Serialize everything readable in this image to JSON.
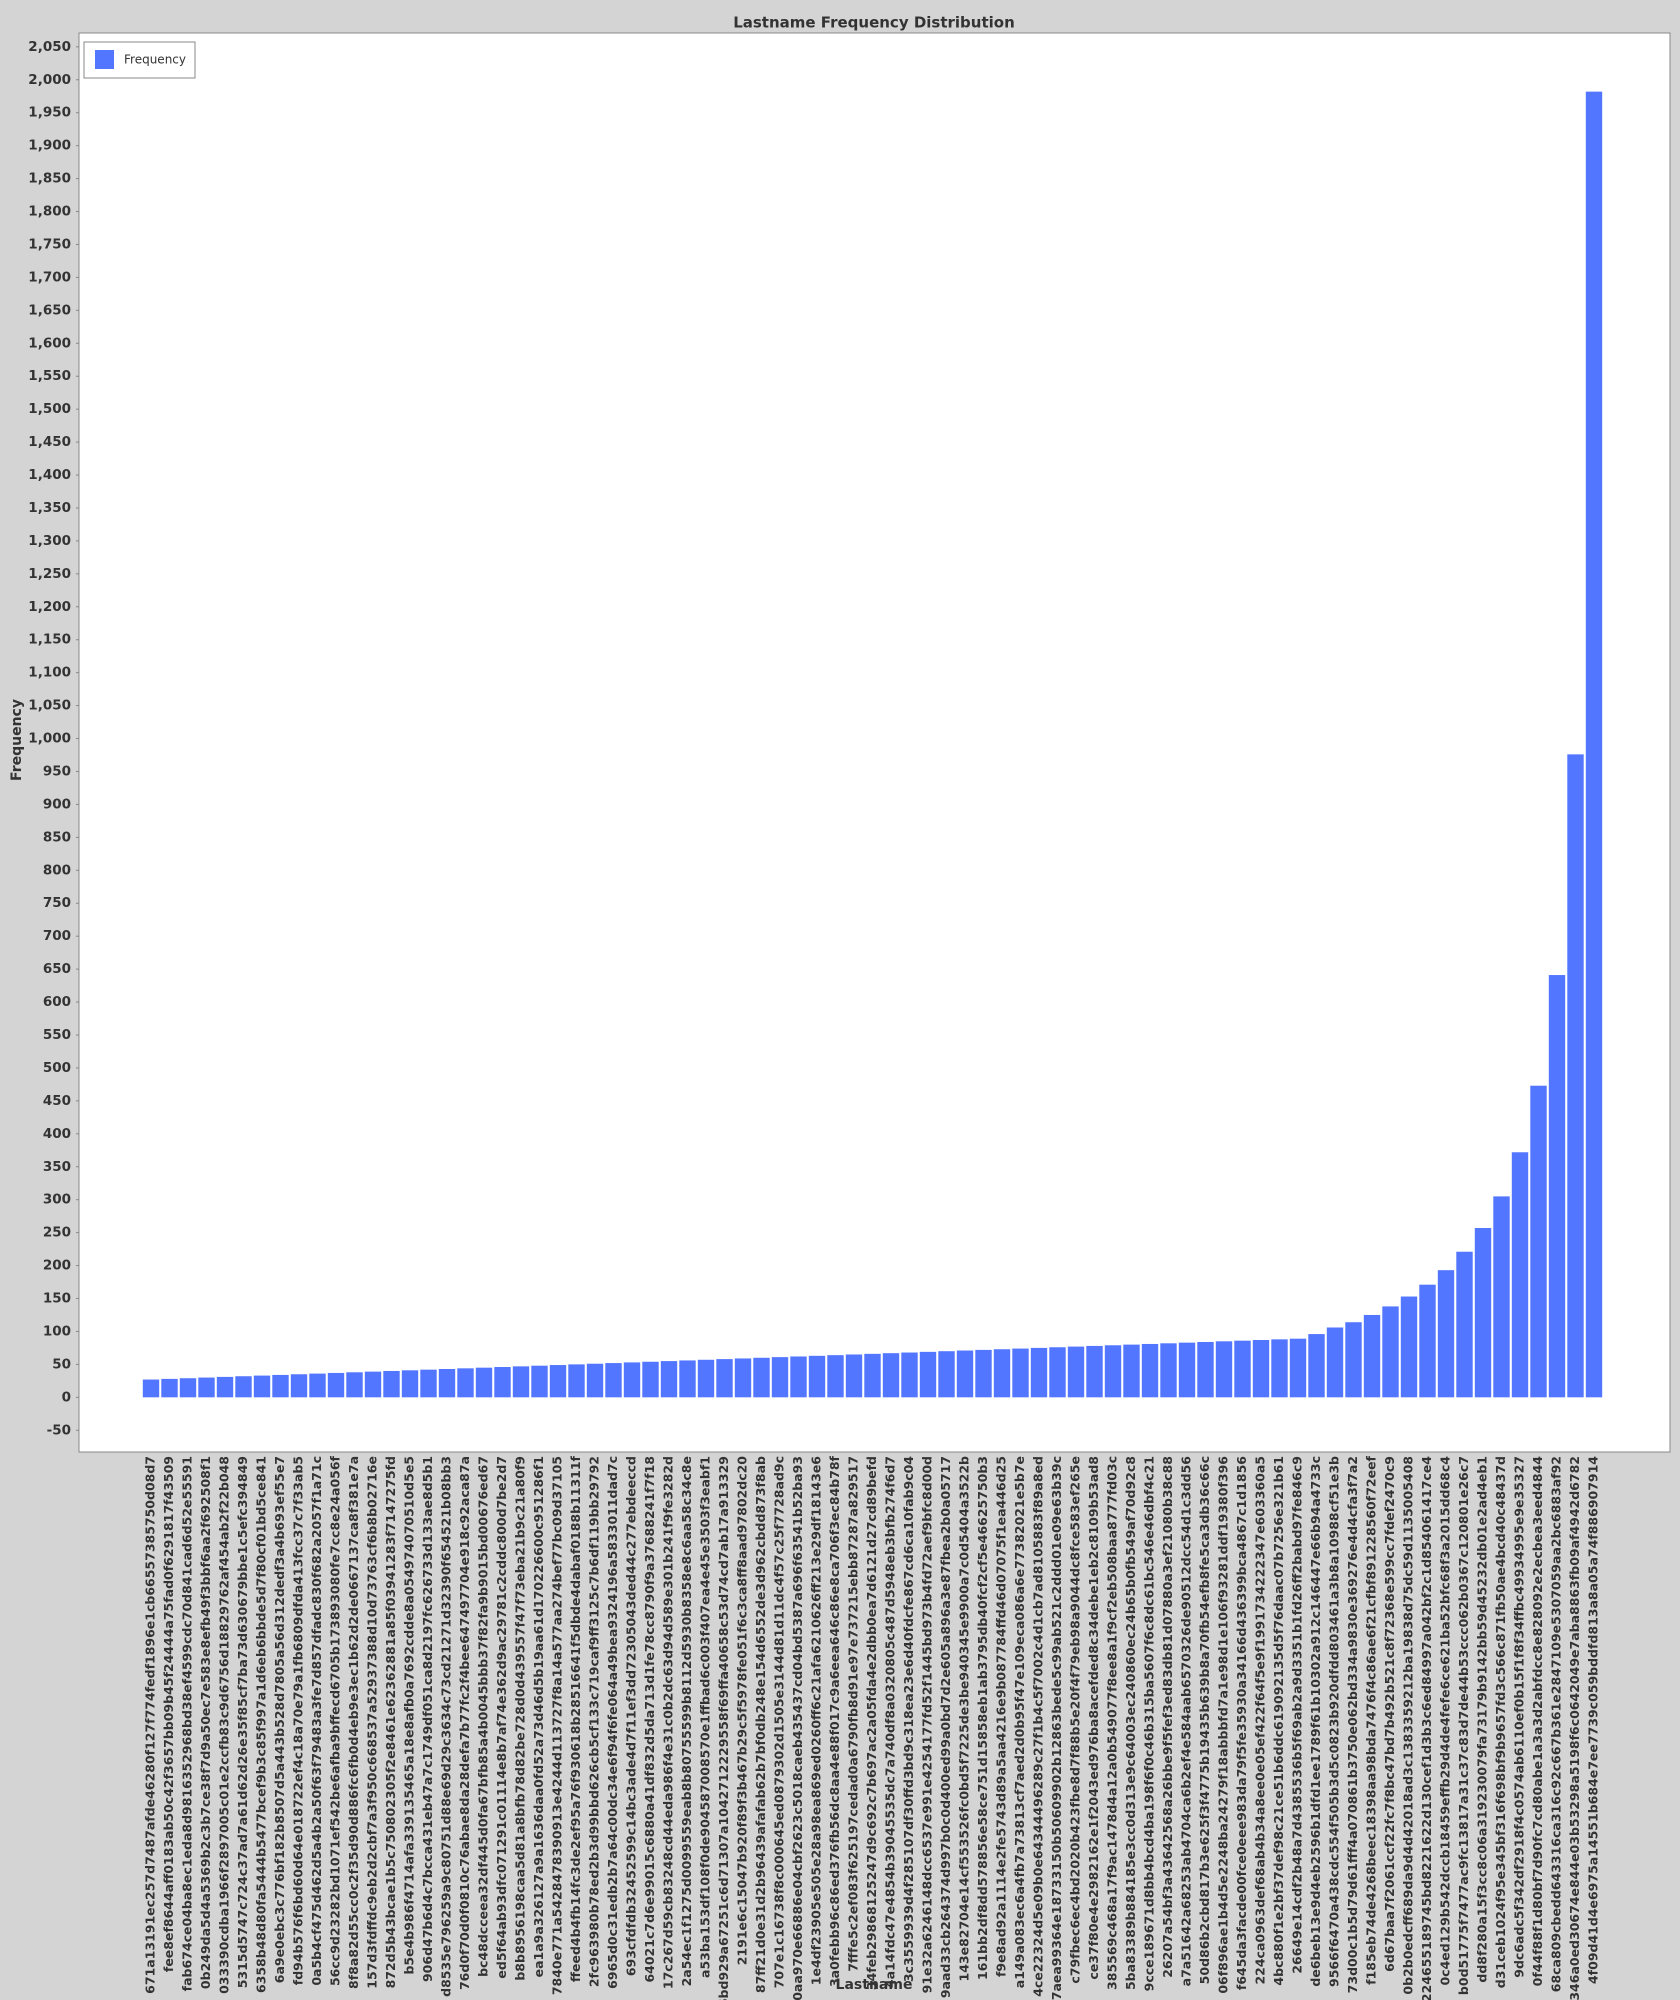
{
  "chart_data": {
    "type": "bar",
    "title": "Lastname Frequency Distribution",
    "x_label": "Lastname",
    "y_label": "Frequency",
    "color": "#5276ff",
    "legend": "top-left",
    "series": [
      {
        "name": "Frequency",
        "color": "#5276ff",
        "values": [
          27,
          28,
          29,
          30,
          31,
          32,
          33,
          34,
          35,
          36,
          37,
          38,
          39,
          40,
          41,
          42,
          43,
          44,
          45,
          46,
          47,
          48,
          49,
          50,
          51,
          52,
          53,
          54,
          55,
          56,
          57,
          58,
          59,
          60,
          61,
          62,
          63,
          64,
          65,
          66,
          67,
          68,
          69,
          70,
          71,
          72,
          73,
          74,
          75,
          76,
          77,
          78,
          79,
          80,
          81,
          82,
          83,
          84,
          85,
          86,
          87,
          88,
          89,
          96,
          106,
          114,
          125,
          138,
          153,
          171,
          193,
          221,
          257,
          305,
          372,
          473,
          641,
          976,
          1982
        ]
      }
    ],
    "categories": [
      "671a13191ec257d7487afde46280f127f774fedf1896e1cb66557385750d08d7",
      "fee8ef8644aff0183ab50c42f3657bb09b45f24444a75fad0f6291817f43509",
      "fab674ce04ba8ec1eda8d9816352968bd38ef4599cdc70d841cad6d52e55591",
      "0b249da5d4a5369b2c3b7ce38f7d9a50ec7e583e8efb49f3bbf6aa2f692508f1",
      "033390cdba1966f2897005c01e2ccfb83c9d6756d18829762af454ab2f22b048",
      "5315d5747c724c37ad7a61d62d26e35f85cf7ba73d630679bbe1c5efc394849",
      "6358b48d80fa5444b5477bcef9b3c85f997a1d6eb6bbde5d7f80cf01bd5ce841",
      "6a9e0ebc3c776bf182b8507d5a443b528d7805a56d312dedf3a4b693ef55e7",
      "fd94b576f6bd60d64e018722ef4c18a70e79a1fb6809dfda413fcc37c7f33ab5",
      "0a5b4cf475d462d5a4b2a50f63f79483a3fe7d857dfadc830f682a2057f1a71c",
      "56cc9d23282bd1071ef542be6afba9bffecd6705b173893080fe7cc8e24a056f",
      "8f8a82d55cc0c2f35d90d886fc6fb0d4eb9e3ec1b62d2de0667137ca8f381e7a",
      "157d3fdffdc9eb2d2cbf7a3f950c668537a52937388d10d73763cf6b8b02716e",
      "872d5b43bcae1b5c750802305f2e8461e62362881a85f03941283f7147275fd",
      "b5e4b986f4714afa339135465a18e8afb0a7692cdde8a054974070510d5e5",
      "906d47b6d4c7bcca431eb47a7c1749df051ca8d2197fc626733d133ae8d5b1",
      "d8535e796259a9c80751d88e69d29c3634c73cd21271d32390f654521b08bb3",
      "76d0f70d0f0810c76abae8da28defa7b77fc2f4bee647497704e918c92aca87a",
      "bc48dcceea32df445d0fa67bfb85a4b0045bbb37f82fa9b9015bd00676ed67",
      "ed5f64ab93dfc071291c01114e8b7af74e362d9ac29781c2cddc800d7be2d7",
      "b8b8956198caa5d81a8bfb78d82be728d0d439557f47f73eba21b9c21a80f9",
      "ea1a9a326127a9a1636daa0fd52a73d46d5b19aa61d170226600c951286f1",
      "7840e771a5428478390913e4244d113727f8a14a577aa274bef77bc09d37105",
      "ffeed4b4fb14fc3de2ef95a76f930618b28516641f5dbde4dabaf0188b11311f",
      "2fc963980b78ed2b3d99bbd626cb5cf133c719caf9ff3125c7b6df119bb29792",
      "6965d0c31edb2b7a64c00dc34e6f94f6fe064a49bea9324196a5833011dad7c",
      "693cfdfdb32452599c14bc3ade4d7f11ef3dd72305043ded44c277ebdeeccd",
      "64021c7d6e99015c6880a41df832d5da713d1fe78cc8790f9a37688241f7f18",
      "17c267d59cb83248cd44eda986f4e31c0b2dc63d94d589e301b241f9fe3282d",
      "2a54ec1f1275d0099559eab8b80755599b8112d5930b8358e8c6aa58c34c8e",
      "a53ba153df108f0de904587008570e1ffbad6c003f407ea4e45e3503f3eabf1",
      "6bd929a67251c6d71307a1042712229558f69ffa40658c53d74cd7ab17a913329",
      "2191e6c15047b920f89f3b467b29c5f5978fe051f6c3ca8ff8aad97802dc20",
      "87ff21d0e31d2b96439afafab62b7bf0db248e154d6552de3d962cbdd873f8ab",
      "707e1c16738f8c000645ed0879302d1505e3144d81d11dc4f57c25f7728ad9c",
      "0aa970e66886e04cbf2623c5018caeb435437cd04bd5387a696f63541b52ba93",
      "1e4df23905e505e28a98ea869ed0260ff6c21afa6210626ff213e29df18143e6",
      "3a0febb96c86ed376fb56dc8aa4e88f017c9a6eea646c86e8ca706f3ec84b78f",
      "7fffe5c2ef083f625197cedad0a6790fb8d91e97e737215ebb87287a829517",
      "34feb29868125247d9c692c7b697ac2a05fda4e2dbb0ea7d6121d27cd89befd",
      "4a14fdc47e4854b39045535dc7a740df8a0320805c487d5948eb3bfb274f6d7",
      "3c3559939d4f285107df30ffd3bd9c318ea23e6d40fdcfe867cd6ca10fab9c04",
      "91e32a6246148dcc6537e991e4254177fd52f1445bd973b4fd72aef9bfc8d00d",
      "9aad33cb264374d997b0c0d400ed99a0bd7d2e605a896a3e87fbea2b0a05717",
      "143e82704e14cf553526fc0bd5f7225de3be940345e9900a7c0d5404a3522b",
      "161bb2df8dd578856e58ce751d15858eb1ab3795db40fcf2cf5e46625750b3",
      "f9e8ad92a1114e2fe5743d89a5aa4216e9b087784ffd46d07075f1ea446d25",
      "a149a083ec6a4fb7a73813cf7aed2d0b95f47e109eca086a6e77382021e5b7e",
      "4ce22324d5e09b0e64344496289c27f1b4c5f7002c4d1cb7ad8105883f89a8ed",
      "7aea99364e18733150b50609902b12863bede5c99ab521c2ddd01e09e63b39c",
      "c79fbec6ec4bd2020b423fbe8d7f88b5e20f4f79eb98a9044dc8fce583ef265e",
      "ce37f80e4e2982162e1f2043ed976ba8acefded8c34debe1eb2c8109b53ad8",
      "385569c468a17f9ac1478d4a12a0b549077f8ee8a1f9cf2eb508baa8777fd03c",
      "5ba83389b884185e3cc0d313e9c64003ec240860ec24b65b0fb549af70d92c8",
      "9cce189671d8bb4bcd4ba198f6f0c46b315ba5607f6c8dc61bc546e46dbf4c21",
      "26207a54bf3a43642568a26bbe9f5fef3ed83db81d07880a3ef21080b38c88",
      "a7a51642a68253ab4704ca6b2ef4e584aab6570326de90512dcc54d1c3dd56",
      "50d86b2cbd817b3e625f3f4775b19435b639b8a70fb54efb8fe5ca3db36c66c",
      "06f896ae1b4d5e2248ba24279f18abbbfd7a1e98d1e106f93281ddf19380f396",
      "f645da3facde00fce0eee983da79f5fe35930a34166d436399bca4867c1d1856",
      "224ca0963def68ab4b34a8ee0e05ef422f64f5e9f1991734222347e603360a5",
      "4bc880f1e2bf37def98c21ce51b6ddc619092135d5f76daac07b7256e321b61",
      "26649e14cdf2b48a7d4385536b5f69ab2a9d3351b1fd26ff2babd97fe846c9",
      "de6beb13e9d4eb2596b1dfd1ee1789f61b10302a912c146447e66b94a4733c",
      "9566f6470a438cdc554f505b3d5c0823b920dfdd803461a3b8a10988cf51e3b",
      "73d00c1b5d79d61fff4a070861b3750e062bd334a9830e369276e4d4cfa3f7a2",
      "f185eb74de4268beec18398aa98bda7476f4c86ae6f21cfbf891228560f72eef",
      "6d67baa7f2061ccf22fc7f8bc47bd7b492b521c8f72368e599cc7fdef2470c9",
      "0b2b0edcff689da9d4d42018ad3c1383359212ba19838d75dc59d1135005408",
      "224655189745bd8221622d130cef1d3b3c6ed84997a042bf2c1d854061417ce4",
      "0c4ed129b542dccb18459effb29d4de4fefe6ce621ba52bfc68f3a2015dd68c4",
      "b0d51775f7477ac9fc13817a31c37c83d7de44b53ccc062b0367c120801e26c7",
      "dd8f280a15f3cc8c06a319230079fa73179b9142bb59d45232db01e2ad4eb1",
      "d31ceb1024f95e345bf316f698bf9b9657fd3c566c871fb50ae4bcd40c48437d",
      "9dc6adc5f342df2918f4c0574ab6110ef0b15f1f8f34ffbc49934995e9e35327",
      "0f44f88f1d80bf7d90fc7cd80abe1a3a3d2abfdcc8e828092e2ecbea3eed4844",
      "68ca809cbedd643316ca316c92c667b361e2847109e5307059aa2bc6883af92",
      "346a0ed30674e844e03b53298a5198f6c0642049e7aba8863fb09af4942d6782",
      "4f09d41d4e6975a14551b684e7ee7739c059bddfd813a8a05a74f886907914"
    ],
    "ylim": [
      -83,
      2071
    ],
    "yticks": [
      -50,
      0,
      50,
      100,
      150,
      200,
      250,
      300,
      350,
      400,
      450,
      500,
      550,
      600,
      650,
      700,
      750,
      800,
      850,
      900,
      950,
      {
        "value": 1000,
        "label": "1,000"
      },
      {
        "value": 1050,
        "label": "1,050"
      },
      {
        "value": 1100,
        "label": "1,100"
      },
      {
        "value": 1150,
        "label": "1,150"
      },
      {
        "value": 1200,
        "label": "1,200"
      },
      {
        "value": 1250,
        "label": "1,250"
      },
      {
        "value": 1300,
        "label": "1,300"
      },
      {
        "value": 1350,
        "label": "1,350"
      },
      {
        "value": 1400,
        "label": "1,400"
      },
      {
        "value": 1450,
        "label": "1,450"
      },
      {
        "value": 1500,
        "label": "1,500"
      },
      {
        "value": 1550,
        "label": "1,550"
      },
      {
        "value": 1600,
        "label": "1,600"
      },
      {
        "value": 1650,
        "label": "1,650"
      },
      {
        "value": 1700,
        "label": "1,700"
      },
      {
        "value": 1750,
        "label": "1,750"
      },
      {
        "value": 1800,
        "label": "1,800"
      },
      {
        "value": 1850,
        "label": "1,850"
      },
      {
        "value": 1900,
        "label": "1,900"
      },
      {
        "value": 1950,
        "label": "1,950"
      },
      {
        "value": 2000,
        "label": "2,000"
      },
      {
        "value": 2050,
        "label": "2,050"
      }
    ],
    "grid": false
  }
}
